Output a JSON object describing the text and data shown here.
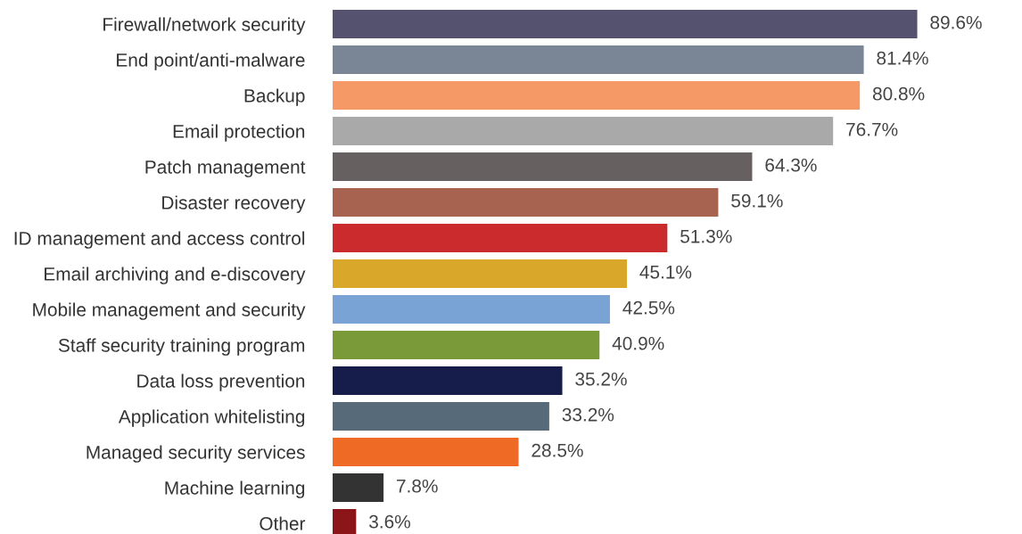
{
  "chart_data": {
    "type": "bar",
    "orientation": "horizontal",
    "data_labels": true,
    "categories": [
      "Firewall/network security",
      "End point/anti-malware",
      "Backup",
      "Email protection",
      "Patch management",
      "Disaster recovery",
      "ID management and access control",
      "Email archiving and e-discovery",
      "Mobile management and security",
      "Staff security training program",
      "Data loss prevention",
      "Application whitelisting",
      "Managed security services",
      "Machine learning",
      "Other"
    ],
    "values": [
      89.6,
      81.4,
      80.8,
      76.7,
      64.3,
      59.1,
      51.3,
      45.1,
      42.5,
      40.9,
      35.2,
      33.2,
      28.5,
      7.8,
      3.6
    ],
    "value_labels": [
      "89.6%",
      "81.4%",
      "80.8%",
      "76.7%",
      "64.3%",
      "59.1%",
      "51.3%",
      "45.1%",
      "42.5%",
      "40.9%",
      "35.2%",
      "33.2%",
      "28.5%",
      "7.8%",
      "3.6%"
    ],
    "colors": [
      "#55526f",
      "#7a8596",
      "#f59a66",
      "#a9a9a9",
      "#666060",
      "#a86250",
      "#cc2b2e",
      "#d9a82a",
      "#7aa3d5",
      "#7a9a3a",
      "#161d4a",
      "#566a7a",
      "#ef6a25",
      "#333333",
      "#8b1519"
    ]
  }
}
